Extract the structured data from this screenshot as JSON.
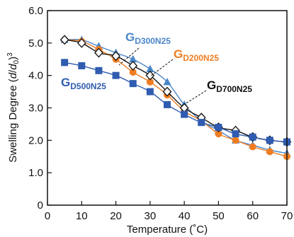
{
  "chart_data": {
    "type": "line",
    "xlabel": "Temperature (˚C)",
    "ylabel": "Swelling Degree (d/d0)³",
    "ylabel_parts": {
      "prefix": "Swelling Degree (",
      "d1": "d",
      "slash": "/",
      "d2": "d",
      "sub0": "0",
      "close": ")",
      "exp": "3"
    },
    "xlim": [
      0,
      70
    ],
    "ylim": [
      0,
      6
    ],
    "xticks": [
      0,
      10,
      20,
      30,
      40,
      50,
      60,
      70
    ],
    "yticks": [
      0,
      1.0,
      2.0,
      3.0,
      4.0,
      5.0,
      6.0
    ],
    "ytick_labels": [
      "0",
      "1.0",
      "2.0",
      "3.0",
      "4.0",
      "5.0",
      "6.0"
    ],
    "grid": false,
    "legend": "inline labels",
    "series": [
      {
        "name": "GD300N25",
        "label_main": "G",
        "label_sub": "D300N25",
        "color": "#4a86c8",
        "marker": "triangle",
        "x": [
          5,
          10,
          15,
          20,
          25,
          30,
          35,
          40,
          45,
          50,
          55,
          60,
          65,
          70
        ],
        "y": [
          5.1,
          5.1,
          4.9,
          4.7,
          4.5,
          4.2,
          3.8,
          3.1,
          2.6,
          2.3,
          2.0,
          1.85,
          1.7,
          1.6
        ]
      },
      {
        "name": "GD200N25",
        "label_main": "G",
        "label_sub": "D200N25",
        "color": "#f07d22",
        "marker": "circle",
        "x": [
          5,
          10,
          15,
          20,
          25,
          30,
          35,
          40,
          45,
          50,
          55,
          60,
          65,
          70
        ],
        "y": [
          5.1,
          5.05,
          4.8,
          4.5,
          4.1,
          3.8,
          3.4,
          2.9,
          2.6,
          2.2,
          2.0,
          1.8,
          1.65,
          1.5
        ]
      },
      {
        "name": "GD700N25",
        "label_main": "G",
        "label_sub": "D700N25",
        "color": "#111111",
        "marker": "diamond",
        "x": [
          5,
          10,
          15,
          20,
          25,
          30,
          35,
          40,
          45,
          50,
          55,
          60,
          65,
          70
        ],
        "y": [
          5.1,
          5.0,
          4.7,
          4.6,
          4.3,
          4.0,
          3.5,
          3.0,
          2.7,
          2.4,
          2.3,
          2.1,
          2.0,
          1.95
        ]
      },
      {
        "name": "GD500N25",
        "label_main": "G",
        "label_sub": "D500N25",
        "color": "#2f5cb0",
        "marker": "square",
        "x": [
          5,
          10,
          15,
          20,
          25,
          30,
          35,
          40,
          45,
          50,
          55,
          60,
          65,
          70
        ],
        "y": [
          4.4,
          4.3,
          4.15,
          4.0,
          3.75,
          3.5,
          3.1,
          2.8,
          2.55,
          2.4,
          2.2,
          2.1,
          2.0,
          1.95
        ]
      }
    ]
  }
}
